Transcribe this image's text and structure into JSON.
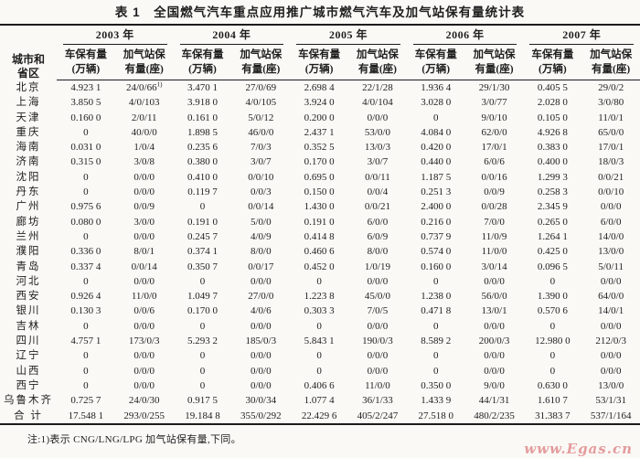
{
  "title": "表 1　全国燃气汽车重点应用推广城市燃气汽车及加气站保有量统计表",
  "table": {
    "corner": "城市和\n省区",
    "years": [
      "2003 年",
      "2004 年",
      "2005 年",
      "2006 年",
      "2007 年"
    ],
    "sub_vehicles": "车保有量\n(万辆)",
    "sub_stations": "加气站保\n有量(座)",
    "rows": [
      {
        "city": "北京",
        "values": [
          "4.923 1",
          "24/0/66^1)",
          "3.470 1",
          "27/0/69",
          "2.698 4",
          "22/1/28",
          "1.936 4",
          "29/1/30",
          "0.405 5",
          "29/0/2"
        ]
      },
      {
        "city": "上海",
        "values": [
          "3.850 5",
          "4/0/103",
          "3.918 0",
          "4/0/105",
          "3.924 0",
          "4/0/104",
          "3.028 0",
          "3/0/77",
          "2.028 0",
          "3/0/80"
        ]
      },
      {
        "city": "天津",
        "values": [
          "0.160 0",
          "2/0/11",
          "0.161 0",
          "5/0/12",
          "0.200 0",
          "0/0/0",
          "0",
          "9/0/10",
          "0.105 0",
          "11/0/1"
        ]
      },
      {
        "city": "重庆",
        "values": [
          "0",
          "40/0/0",
          "1.898 5",
          "46/0/0",
          "2.437 1",
          "53/0/0",
          "4.084 0",
          "62/0/0",
          "4.926 8",
          "65/0/0"
        ]
      },
      {
        "city": "海南",
        "values": [
          "0.031 0",
          "1/0/4",
          "0.235 6",
          "7/0/3",
          "0.352 5",
          "13/0/3",
          "0.420 0",
          "17/0/1",
          "0.383 0",
          "17/0/1"
        ]
      },
      {
        "city": "济南",
        "values": [
          "0.315 0",
          "3/0/8",
          "0.380 0",
          "3/0/7",
          "0.170 0",
          "3/0/7",
          "0.440 0",
          "6/0/6",
          "0.400 0",
          "18/0/3"
        ]
      },
      {
        "city": "沈阳",
        "values": [
          "0",
          "0/0/0",
          "0.410 0",
          "0/0/10",
          "0.695 0",
          "0/0/11",
          "1.187 5",
          "0/0/16",
          "1.299 3",
          "0/0/21"
        ]
      },
      {
        "city": "丹东",
        "values": [
          "0",
          "0/0/0",
          "0.119 7",
          "0/0/3",
          "0.150 0",
          "0/0/4",
          "0.251 3",
          "0/0/9",
          "0.258 3",
          "0/0/10"
        ]
      },
      {
        "city": "广州",
        "values": [
          "0.975 6",
          "0/0/9",
          "0",
          "0/0/14",
          "1.430 0",
          "0/0/21",
          "2.400 0",
          "0/0/28",
          "2.345 9",
          "0/0/0"
        ]
      },
      {
        "city": "廊坊",
        "values": [
          "0.080 0",
          "3/0/0",
          "0.191 0",
          "5/0/0",
          "0.191 0",
          "6/0/0",
          "0.216 0",
          "7/0/0",
          "0.265 0",
          "6/0/0"
        ]
      },
      {
        "city": "兰州",
        "values": [
          "0",
          "0/0/0",
          "0.245 7",
          "4/0/9",
          "0.414 8",
          "6/0/9",
          "0.737 9",
          "11/0/9",
          "1.264 1",
          "14/0/0"
        ]
      },
      {
        "city": "濮阳",
        "values": [
          "0.336 0",
          "8/0/1",
          "0.374 1",
          "8/0/0",
          "0.460 6",
          "8/0/0",
          "0.574 0",
          "11/0/0",
          "0.425 0",
          "13/0/0"
        ]
      },
      {
        "city": "青岛",
        "values": [
          "0.337 4",
          "0/0/14",
          "0.350 7",
          "0/0/17",
          "0.452 0",
          "1/0/19",
          "0.160 0",
          "3/0/14",
          "0.096 5",
          "5/0/11"
        ]
      },
      {
        "city": "河北",
        "values": [
          "0",
          "0/0/0",
          "0",
          "0/0/0",
          "0",
          "0/0/0",
          "0",
          "0/0/0",
          "0",
          "0/0/0"
        ]
      },
      {
        "city": "西安",
        "values": [
          "0.926 4",
          "11/0/0",
          "1.049 7",
          "27/0/0",
          "1.223 8",
          "45/0/0",
          "1.238 0",
          "56/0/0",
          "1.390 0",
          "64/0/0"
        ]
      },
      {
        "city": "银川",
        "values": [
          "0.130 3",
          "0/0/6",
          "0.170 0",
          "4/0/6",
          "0.303 3",
          "7/0/5",
          "0.471 8",
          "13/0/1",
          "0.570 6",
          "14/0/1"
        ]
      },
      {
        "city": "吉林",
        "values": [
          "0",
          "0/0/0",
          "0",
          "0/0/0",
          "0",
          "0/0/0",
          "0",
          "0/0/0",
          "0",
          "0/0/0"
        ]
      },
      {
        "city": "四川",
        "values": [
          "4.757 1",
          "173/0/3",
          "5.293 2",
          "185/0/3",
          "5.843 1",
          "190/0/3",
          "8.589 2",
          "200/0/3",
          "12.980 0",
          "212/0/3"
        ]
      },
      {
        "city": "辽宁",
        "values": [
          "0",
          "0/0/0",
          "0",
          "0/0/0",
          "0",
          "0/0/0",
          "0",
          "0/0/0",
          "0",
          "0/0/0"
        ]
      },
      {
        "city": "山西",
        "values": [
          "0",
          "0/0/0",
          "0",
          "0/0/0",
          "0",
          "0/0/0",
          "0",
          "0/0/0",
          "0",
          "0/0/0"
        ]
      },
      {
        "city": "西宁",
        "values": [
          "0",
          "0/0/0",
          "0",
          "0/0/0",
          "0.406 6",
          "11/0/0",
          "0.350 0",
          "9/0/0",
          "0.630 0",
          "13/0/0"
        ]
      },
      {
        "city": "乌鲁木齐",
        "values": [
          "0.725 7",
          "24/0/30",
          "0.917 5",
          "30/0/34",
          "1.077 4",
          "36/1/33",
          "1.433 9",
          "44/1/31",
          "1.610 7",
          "53/1/31"
        ]
      },
      {
        "city": "合 计",
        "values": [
          "17.548 1",
          "293/0/255",
          "19.184 8",
          "355/0/292",
          "22.429 6",
          "405/2/247",
          "27.518 0",
          "480/2/235",
          "31.383 7",
          "537/1/164"
        ]
      }
    ]
  },
  "note": "注:1)表示 CNG/LNG/LPG 加气站保有量,下同。",
  "watermark": "www.Egas.cn"
}
